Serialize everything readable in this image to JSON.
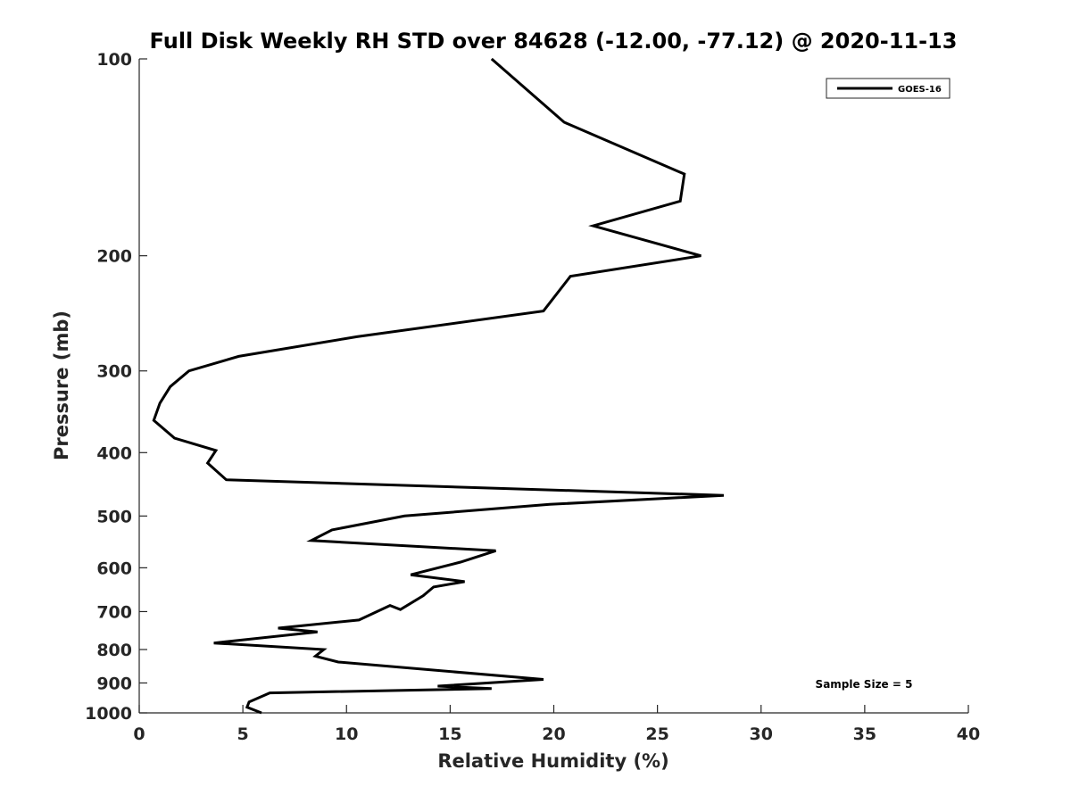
{
  "chart_data": {
    "type": "line",
    "title": "Full Disk Weekly RH STD over 84628 (-12.00, -77.12) @ 2020-11-13",
    "xlabel": "Relative Humidity (%)",
    "ylabel": "Pressure (mb)",
    "xlim": [
      0,
      40
    ],
    "ylim": [
      100,
      1000
    ],
    "y_scale": "log",
    "y_reversed": true,
    "x_ticks": [
      "0",
      "5",
      "10",
      "15",
      "20",
      "25",
      "30",
      "35",
      "40"
    ],
    "y_ticks": [
      "100",
      "200",
      "300",
      "400",
      "500",
      "600",
      "700",
      "800",
      "900",
      "1000"
    ],
    "grid": false,
    "legend_position": "top-right",
    "annotation": "Sample Size = 5",
    "series": [
      {
        "name": "GOES-16",
        "color": "#000000",
        "points": [
          [
            17.0,
            100
          ],
          [
            20.5,
            125
          ],
          [
            26.3,
            150
          ],
          [
            26.1,
            165
          ],
          [
            21.9,
            180
          ],
          [
            27.1,
            200
          ],
          [
            20.8,
            215
          ],
          [
            19.5,
            243
          ],
          [
            10.5,
            266
          ],
          [
            4.8,
            285
          ],
          [
            2.4,
            300
          ],
          [
            1.5,
            317
          ],
          [
            1.0,
            336
          ],
          [
            0.7,
            357
          ],
          [
            1.7,
            380
          ],
          [
            3.7,
            397
          ],
          [
            3.3,
            415
          ],
          [
            4.2,
            440
          ],
          [
            28.2,
            465
          ],
          [
            19.8,
            480
          ],
          [
            12.8,
            500
          ],
          [
            9.3,
            525
          ],
          [
            8.3,
            545
          ],
          [
            17.2,
            565
          ],
          [
            15.5,
            588
          ],
          [
            13.1,
            615
          ],
          [
            15.7,
            630
          ],
          [
            14.2,
            642
          ],
          [
            13.7,
            662
          ],
          [
            12.6,
            695
          ],
          [
            12.1,
            685
          ],
          [
            10.6,
            721
          ],
          [
            6.7,
            742
          ],
          [
            8.6,
            752
          ],
          [
            3.6,
            782
          ],
          [
            8.9,
            800
          ],
          [
            8.5,
            819
          ],
          [
            9.6,
            836
          ],
          [
            19.5,
            889
          ],
          [
            14.4,
            910
          ],
          [
            17.0,
            918
          ],
          [
            6.3,
            932
          ],
          [
            5.3,
            962
          ],
          [
            5.2,
            980
          ],
          [
            5.9,
            1000
          ]
        ]
      }
    ]
  }
}
